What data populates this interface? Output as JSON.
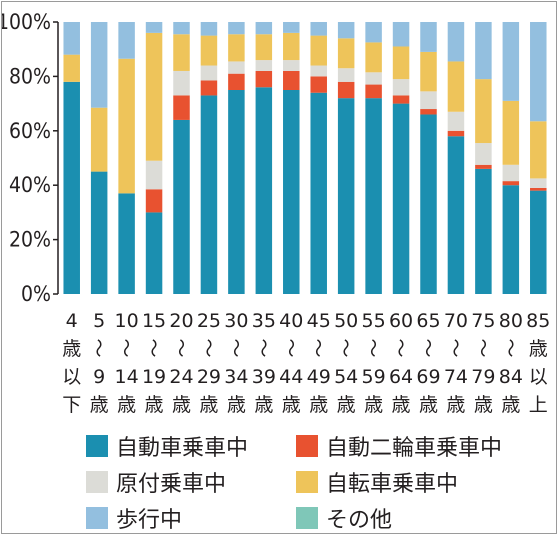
{
  "chart_data": {
    "type": "bar",
    "stacked": true,
    "categories": [
      "4歳以下",
      "5～9歳",
      "10～14歳",
      "15～19歳",
      "20～24歳",
      "25～29歳",
      "30～34歳",
      "35～39歳",
      "40～44歳",
      "45～49歳",
      "50～54歳",
      "55～59歳",
      "60～64歳",
      "65～69歳",
      "70～74歳",
      "75～79歳",
      "80～84歳",
      "85歳以上"
    ],
    "category_lines": [
      [
        "4",
        "歳",
        "以",
        "下"
      ],
      [
        "5",
        "～",
        "9",
        "歳"
      ],
      [
        "10",
        "～",
        "14",
        "歳"
      ],
      [
        "15",
        "～",
        "19",
        "歳"
      ],
      [
        "20",
        "～",
        "24",
        "歳"
      ],
      [
        "25",
        "～",
        "29",
        "歳"
      ],
      [
        "30",
        "～",
        "34",
        "歳"
      ],
      [
        "35",
        "～",
        "39",
        "歳"
      ],
      [
        "40",
        "～",
        "44",
        "歳"
      ],
      [
        "45",
        "～",
        "49",
        "歳"
      ],
      [
        "50",
        "～",
        "54",
        "歳"
      ],
      [
        "55",
        "～",
        "59",
        "歳"
      ],
      [
        "60",
        "～",
        "64",
        "歳"
      ],
      [
        "65",
        "～",
        "69",
        "歳"
      ],
      [
        "70",
        "～",
        "74",
        "歳"
      ],
      [
        "75",
        "～",
        "79",
        "歳"
      ],
      [
        "80",
        "～",
        "84",
        "歳"
      ],
      [
        "85",
        "歳",
        "以",
        "上"
      ]
    ],
    "series": [
      {
        "name": "自動車乗車中",
        "color": "#1b8fb0",
        "values": [
          78,
          45,
          37,
          30,
          64,
          73,
          75,
          76,
          75,
          74,
          72,
          72,
          70,
          66,
          58,
          46,
          40,
          38
        ]
      },
      {
        "name": "自動二輪車乗車中",
        "color": "#e85230",
        "values": [
          0,
          0,
          0,
          8.5,
          9,
          5.5,
          6,
          6,
          7,
          6,
          6,
          5,
          3,
          2,
          2,
          1.5,
          1.5,
          1
        ]
      },
      {
        "name": "原付乗車中",
        "color": "#dcdcd7",
        "values": [
          0,
          0,
          0,
          10.5,
          9,
          5.5,
          4.5,
          4,
          4,
          4,
          5,
          4.5,
          6,
          6.5,
          7,
          8,
          6,
          3.5
        ]
      },
      {
        "name": "自転車乗車中",
        "color": "#eec45a",
        "values": [
          10,
          23.5,
          49.5,
          47,
          13.5,
          11,
          10,
          9.5,
          10,
          11,
          11,
          11,
          12,
          14.5,
          18.5,
          23.5,
          23.5,
          21
        ]
      },
      {
        "name": "歩行中",
        "color": "#93bfdf",
        "values": [
          12,
          31.5,
          13.5,
          4,
          4.5,
          5,
          4.5,
          4.5,
          4,
          5,
          6,
          7.5,
          9,
          11,
          14.5,
          21,
          29,
          36.5
        ]
      },
      {
        "name": "その他",
        "color": "#7fc7b8",
        "values": [
          0,
          0,
          0,
          0,
          0,
          0,
          0,
          0,
          0,
          0,
          0,
          0,
          0,
          0,
          0,
          0,
          0,
          0
        ]
      }
    ],
    "ylim": [
      0,
      100
    ],
    "yticks": [
      0,
      20,
      40,
      60,
      80,
      100
    ],
    "ytick_labels": [
      "0%",
      "20%",
      "40%",
      "60%",
      "80%",
      "100%"
    ]
  },
  "legend": {
    "rows": [
      [
        "自動車乗車中",
        "自動二輪車乗車中"
      ],
      [
        "原付乗車中",
        "自転車乗車中"
      ],
      [
        "歩行中",
        "その他"
      ]
    ]
  }
}
